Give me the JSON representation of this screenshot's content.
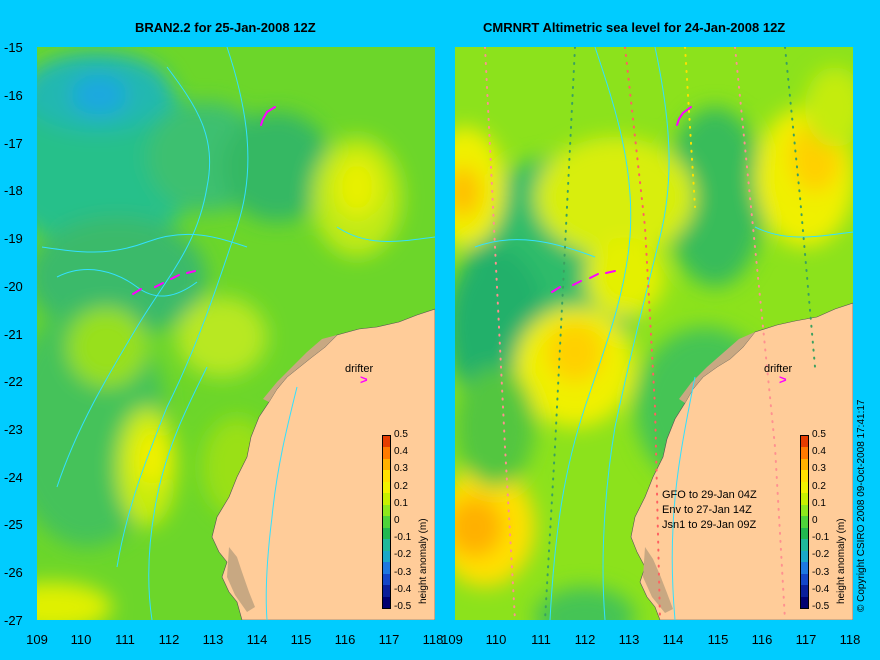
{
  "left_panel": {
    "title": "BRAN2.2 for 25-Jan-2008 12Z",
    "drifter_label": "drifter",
    "drifter_arrow": ">"
  },
  "right_panel": {
    "title": "CMRNRT Altimetric sea level  for 24-Jan-2008 12Z",
    "drifter_label": "drifter",
    "drifter_arrow": ">",
    "passes": [
      "GFO to 29-Jan 04Z",
      "Env to 27-Jan 14Z",
      "Jsn1 to 29-Jan 09Z"
    ]
  },
  "axes": {
    "y_ticks": [
      "-15",
      "-16",
      "-17",
      "-18",
      "-19",
      "-20",
      "-21",
      "-22",
      "-23",
      "-24",
      "-25",
      "-26",
      "-27"
    ],
    "x_ticks": [
      "109",
      "110",
      "111",
      "112",
      "113",
      "114",
      "115",
      "116",
      "117",
      "118"
    ],
    "x_range": [
      109,
      118
    ],
    "y_range": [
      -27,
      -15
    ]
  },
  "colorbar": {
    "label": "height anomaly (m)",
    "ticks": [
      "0.5",
      "0.4",
      "0.3",
      "0.2",
      "0.1",
      "0",
      "-0.1",
      "-0.2",
      "-0.3",
      "-0.4",
      "-0.5"
    ],
    "colors": [
      "#e63c00",
      "#ff7a00",
      "#ffb000",
      "#ffe000",
      "#f2f200",
      "#c8f000",
      "#8ee81c",
      "#4ed43a",
      "#22b850",
      "#1fb89a",
      "#1aa8c8",
      "#1e78e0",
      "#1446c8",
      "#0a1e9a",
      "#000070"
    ]
  },
  "copyright": "© Copyright CSIRO 2008   09-Oct-2008 17:41:17",
  "colors": {
    "background": "#00ccff",
    "land": "#ffcc99",
    "coast": "#c8a882",
    "drifter_track": "#ff00ff",
    "contour": "#33e0ff"
  }
}
